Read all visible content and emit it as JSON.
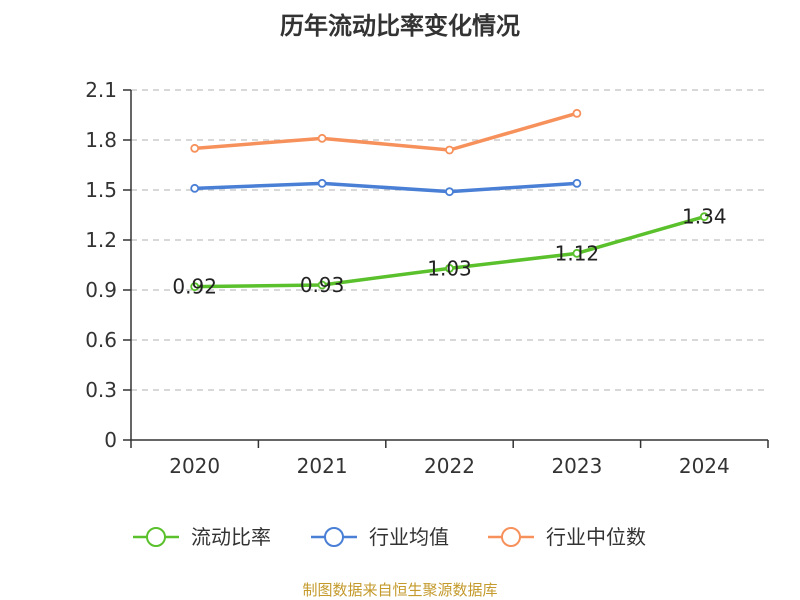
{
  "chart_data": {
    "type": "line",
    "title": "历年流动比率变化情况",
    "xlabel": "",
    "ylabel": "",
    "categories": [
      "2020",
      "2021",
      "2022",
      "2023",
      "2024"
    ],
    "y_ticks": [
      "0",
      "0.3",
      "0.6",
      "0.9",
      "1.2",
      "1.5",
      "1.8",
      "2.1"
    ],
    "ylim": [
      0,
      2.1
    ],
    "grid": true,
    "legend_position": "bottom",
    "series": [
      {
        "name": "流动比率",
        "color": "#5ac12c",
        "values": [
          0.92,
          0.93,
          1.03,
          1.12,
          1.34
        ],
        "data_labels": [
          "0.92",
          "0.93",
          "1.03",
          "1.12",
          "1.34"
        ]
      },
      {
        "name": "行业均值",
        "color": "#4a7fd6",
        "values": [
          1.51,
          1.54,
          1.49,
          1.54,
          null
        ]
      },
      {
        "name": "行业中位数",
        "color": "#f7915c",
        "values": [
          1.75,
          1.81,
          1.74,
          1.96,
          null
        ]
      }
    ]
  },
  "footer": {
    "source_text": "制图数据来自恒生聚源数据库"
  }
}
